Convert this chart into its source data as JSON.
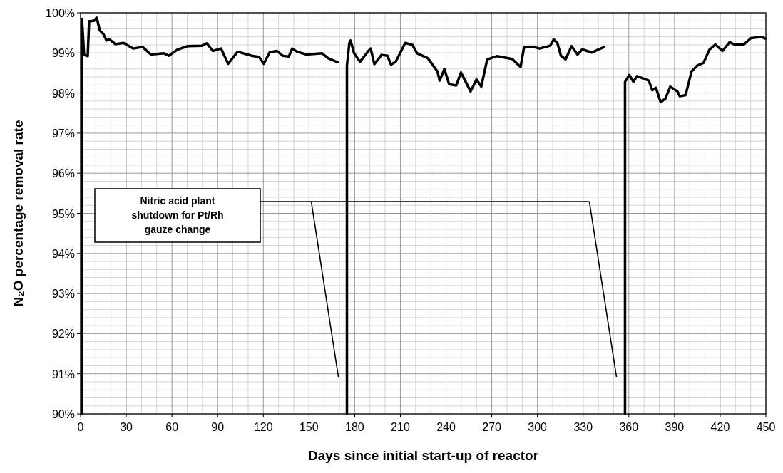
{
  "chart_data": {
    "type": "line",
    "xlabel": "Days since initial start-up of reactor",
    "ylabel": "N₂O percentage removal rate",
    "annotations": [
      "Nitric acid plant shutdown for Pt/Rh gauze change"
    ],
    "x": [
      0.8,
      0.9,
      2.3,
      4.7,
      5.6,
      8.7,
      10.6,
      12.6,
      15,
      17,
      18.9,
      22.8,
      28.2,
      34.5,
      40.7,
      46.2,
      54.8,
      57.9,
      63.4,
      70.4,
      79.7,
      82.9,
      86.8,
      92.2,
      96.9,
      103.1,
      112.5,
      117.2,
      120.3,
      124.2,
      128.9,
      132.8,
      136.7,
      139,
      142.2,
      148.4,
      158.6,
      162.5,
      168.7,
      171,
      174.9,
      174.9,
      176.5,
      177.3,
      179.6,
      183.5,
      189,
      190.5,
      192.9,
      197.6,
      201.5,
      203.8,
      206.9,
      213.2,
      217.9,
      221,
      228,
      234.3,
      235.8,
      238.9,
      242,
      246.7,
      249.8,
      256.1,
      260,
      263.1,
      267,
      273.3,
      283.4,
      288.9,
      291.2,
      297.4,
      301.4,
      308.4,
      310.7,
      313.1,
      315.4,
      318.5,
      322.4,
      326.3,
      329.4,
      335.7,
      339.6,
      343.5,
      350,
      357.5,
      357.5,
      360.3,
      363,
      365.3,
      373.1,
      375.4,
      377.8,
      380.9,
      384,
      387.2,
      391.9,
      393.4,
      397.3,
      401.2,
      405.1,
      409,
      412.9,
      416.8,
      421.5,
      426.2,
      429.3,
      435.5,
      440.2,
      447.2,
      449.6
    ],
    "series": [
      {
        "color": "#000000",
        "values": [
          90,
          99.85,
          98.95,
          98.92,
          99.79,
          99.8,
          99.88,
          99.56,
          99.47,
          99.31,
          99.34,
          99.22,
          99.25,
          99.11,
          99.15,
          98.96,
          98.99,
          98.93,
          99.08,
          99.17,
          99.18,
          99.24,
          99.05,
          99.11,
          98.73,
          99.03,
          98.93,
          98.9,
          98.73,
          99.02,
          99.05,
          98.93,
          98.91,
          99.11,
          99.03,
          98.96,
          98.99,
          98.87,
          98.77,
          null,
          90,
          98.69,
          99.25,
          99.31,
          98.99,
          98.78,
          99.05,
          99.11,
          98.72,
          98.95,
          98.93,
          98.71,
          98.78,
          99.25,
          99.2,
          98.99,
          98.87,
          98.54,
          98.31,
          98.6,
          98.22,
          98.19,
          98.51,
          98.04,
          98.34,
          98.16,
          98.84,
          98.92,
          98.85,
          98.65,
          99.14,
          99.15,
          99.11,
          99.18,
          99.34,
          99.25,
          98.93,
          98.84,
          99.17,
          98.96,
          99.09,
          99.01,
          99.08,
          99.14,
          null,
          90,
          98.28,
          98.45,
          98.28,
          98.42,
          98.31,
          98.07,
          98.13,
          97.77,
          97.86,
          98.16,
          98.04,
          97.92,
          97.95,
          98.54,
          98.69,
          98.75,
          99.08,
          99.21,
          99.05,
          99.27,
          99.21,
          99.21,
          99.37,
          99.4,
          99.36
        ]
      }
    ],
    "xlim": [
      0,
      450
    ],
    "xticks": [
      0,
      30,
      60,
      90,
      120,
      150,
      180,
      210,
      240,
      270,
      300,
      330,
      360,
      390,
      420,
      450
    ],
    "ylim": [
      90,
      100
    ],
    "yticks": [
      {
        "value": 90,
        "label": "90%"
      },
      {
        "value": 91,
        "label": "91%"
      },
      {
        "value": 92,
        "label": "92%"
      },
      {
        "value": 93,
        "label": "93%"
      },
      {
        "value": 94,
        "label": "94%"
      },
      {
        "value": 95,
        "label": "95%"
      },
      {
        "value": 96,
        "label": "96%"
      },
      {
        "value": 97,
        "label": "97%"
      },
      {
        "value": 98,
        "label": "98%"
      },
      {
        "value": 99,
        "label": "99%"
      },
      {
        "value": 100,
        "label": "100%"
      }
    ],
    "grid": true,
    "marker": "none",
    "line_style": "solid"
  }
}
